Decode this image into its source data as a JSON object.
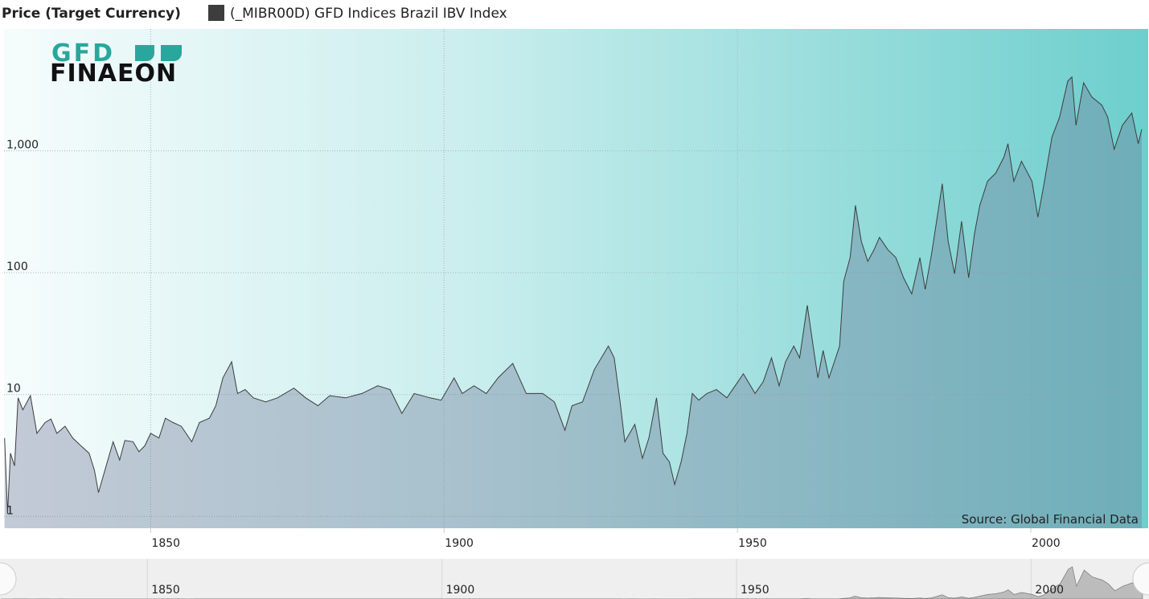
{
  "chart_data": {
    "type": "area",
    "legend_title": "Price (Target Currency)",
    "series": [
      {
        "name": "(_MIBR00D) GFD Indices Brazil IBV Index",
        "color": "#3d3d3d",
        "x": [
          1825.1,
          1825.6,
          1826.1,
          1826.8,
          1827.4,
          1828.2,
          1829.5,
          1830.6,
          1832.0,
          1833.0,
          1834.0,
          1835.4,
          1836.7,
          1838.1,
          1839.5,
          1840.4,
          1841.1,
          1842.2,
          1843.6,
          1844.7,
          1845.6,
          1847.0,
          1848.0,
          1849.0,
          1850.0,
          1851.4,
          1852.5,
          1853.8,
          1855.2,
          1857.0,
          1858.3,
          1860.0,
          1861.1,
          1862.3,
          1863.8,
          1864.8,
          1866.1,
          1867.5,
          1869.6,
          1871.6,
          1874.4,
          1876.4,
          1878.5,
          1880.5,
          1883.2,
          1886.0,
          1888.7,
          1890.8,
          1892.8,
          1894.9,
          1897.6,
          1899.5,
          1901.7,
          1903.1,
          1905.1,
          1907.2,
          1909.2,
          1911.7,
          1914.0,
          1916.8,
          1918.8,
          1920.6,
          1921.8,
          1923.6,
          1925.6,
          1928.0,
          1929.0,
          1930.0,
          1930.8,
          1932.5,
          1933.8,
          1934.9,
          1936.2,
          1937.3,
          1938.4,
          1939.3,
          1940.4,
          1941.4,
          1942.3,
          1943.4,
          1944.8,
          1946.4,
          1948.2,
          1949.6,
          1951.0,
          1953.0,
          1954.4,
          1955.8,
          1957.1,
          1958.2,
          1959.6,
          1960.6,
          1961.9,
          1962.9,
          1963.7,
          1964.6,
          1965.6,
          1967.4,
          1968.1,
          1969.2,
          1970.1,
          1971.1,
          1972.2,
          1973.3,
          1974.2,
          1975.6,
          1977.0,
          1978.3,
          1979.7,
          1981.1,
          1982.0,
          1983.1,
          1984.9,
          1985.9,
          1987.0,
          1988.2,
          1989.4,
          1990.4,
          1991.3,
          1992.6,
          1994.0,
          1995.4,
          1996.1,
          1997.1,
          1998.4,
          2000.2,
          2001.2,
          2002.2,
          2003.6,
          2004.9,
          2006.3,
          2007.0,
          2007.7,
          2009.0,
          2010.4,
          2012.1,
          2013.1,
          2014.2,
          2015.6,
          2017.2,
          2018.3,
          2018.9
        ],
        "values": [
          4.4,
          1.05,
          3.3,
          2.6,
          9.4,
          7.5,
          9.8,
          4.8,
          5.9,
          6.3,
          4.8,
          5.5,
          4.4,
          3.8,
          3.3,
          2.4,
          1.57,
          2.4,
          4.1,
          2.9,
          4.2,
          4.1,
          3.4,
          3.8,
          4.8,
          4.4,
          6.4,
          5.9,
          5.5,
          4.1,
          5.9,
          6.4,
          8.1,
          13.7,
          18.6,
          10.2,
          11,
          9.4,
          8.7,
          9.4,
          11.3,
          9.4,
          8.1,
          9.8,
          9.4,
          10.2,
          11.8,
          11,
          7.0,
          10.2,
          9.4,
          9.0,
          13.7,
          10.2,
          11.8,
          10.2,
          13.7,
          18,
          10.2,
          10.2,
          8.7,
          5.1,
          8.1,
          8.7,
          16,
          25,
          20,
          8.7,
          4.1,
          5.7,
          3.0,
          4.4,
          9.4,
          3.3,
          2.8,
          1.83,
          2.8,
          4.8,
          10.2,
          9.0,
          10.2,
          11,
          9.4,
          11.8,
          14.8,
          10.2,
          12.8,
          20,
          11.8,
          18.6,
          25,
          20,
          54,
          25,
          13.7,
          23,
          13.7,
          25,
          85,
          133,
          357,
          181,
          124,
          155,
          195,
          155,
          133,
          91,
          67,
          133,
          73,
          144,
          537,
          181,
          98,
          264,
          91,
          210,
          357,
          562,
          655,
          886,
          1145,
          562,
          820,
          562,
          285,
          520,
          1294,
          1890,
          3730,
          4030,
          1620,
          3620,
          2760,
          2370,
          1890,
          1030,
          1620,
          2040,
          1145,
          1505
        ]
      }
    ],
    "xlim": [
      1825,
      2020
    ],
    "xticks": [
      1850,
      1900,
      1950,
      2000
    ],
    "ylim": [
      0.8,
      10000
    ],
    "log_scale": true,
    "yticks": [
      1,
      10,
      100,
      {
        "value": 1000,
        "label": "1,000"
      }
    ],
    "grid": true,
    "source": "Source: Global Financial Data",
    "logo": {
      "top": "GFD",
      "bottom": "FINAEON"
    }
  }
}
